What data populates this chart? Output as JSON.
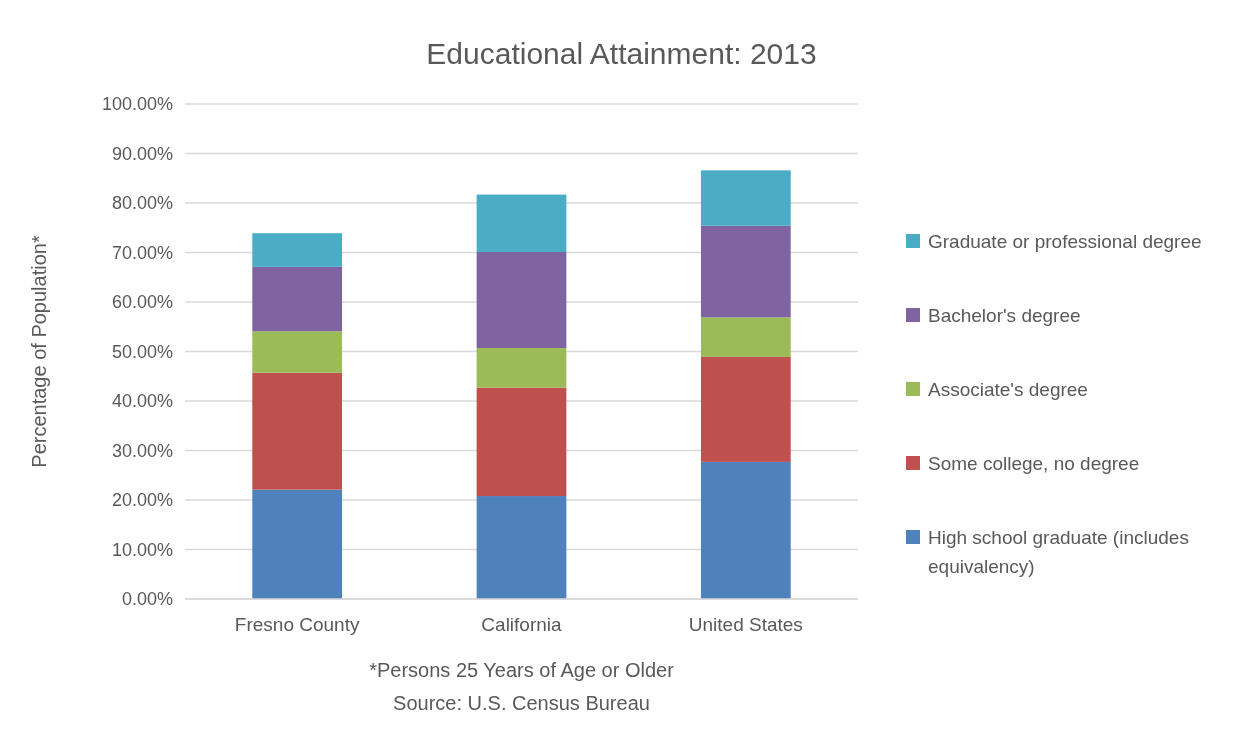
{
  "chart_data": {
    "type": "bar",
    "stacked": true,
    "title": "Educational Attainment: 2013",
    "ylabel": "Percentage  of Population*",
    "annotations": [
      "*Persons 25 Years of  Age  or Older",
      "Source: U.S. Census Bureau"
    ],
    "categories": [
      "Fresno County",
      "California",
      "United States"
    ],
    "series": [
      {
        "name": "High school graduate (includes equivalency)",
        "color": "#4f81bd",
        "values": [
          22.1,
          20.8,
          27.7
        ]
      },
      {
        "name": "Some college, no degree",
        "color": "#c0504d",
        "values": [
          23.6,
          21.9,
          21.2
        ]
      },
      {
        "name": "Associate's degree",
        "color": "#9bbb59",
        "values": [
          8.4,
          8.0,
          8.0
        ]
      },
      {
        "name": "Bachelor's degree",
        "color": "#8064a2",
        "values": [
          13.0,
          19.4,
          18.5
        ]
      },
      {
        "name": "Graduate or professional degree",
        "color": "#4bacc6",
        "values": [
          6.8,
          11.6,
          11.2
        ]
      }
    ],
    "ylim": [
      0,
      100
    ],
    "yticks": [
      {
        "value": 0,
        "label": "0.00%"
      },
      {
        "value": 10,
        "label": "10.00%"
      },
      {
        "value": 20,
        "label": "20.00%"
      },
      {
        "value": 30,
        "label": "30.00%"
      },
      {
        "value": 40,
        "label": "40.00%"
      },
      {
        "value": 50,
        "label": "50.00%"
      },
      {
        "value": 60,
        "label": "60.00%"
      },
      {
        "value": 70,
        "label": "70.00%"
      },
      {
        "value": 80,
        "label": "80.00%"
      },
      {
        "value": 90,
        "label": "90.00%"
      },
      {
        "value": 100,
        "label": "100.00%"
      }
    ],
    "grid": "y",
    "legend": "right"
  }
}
